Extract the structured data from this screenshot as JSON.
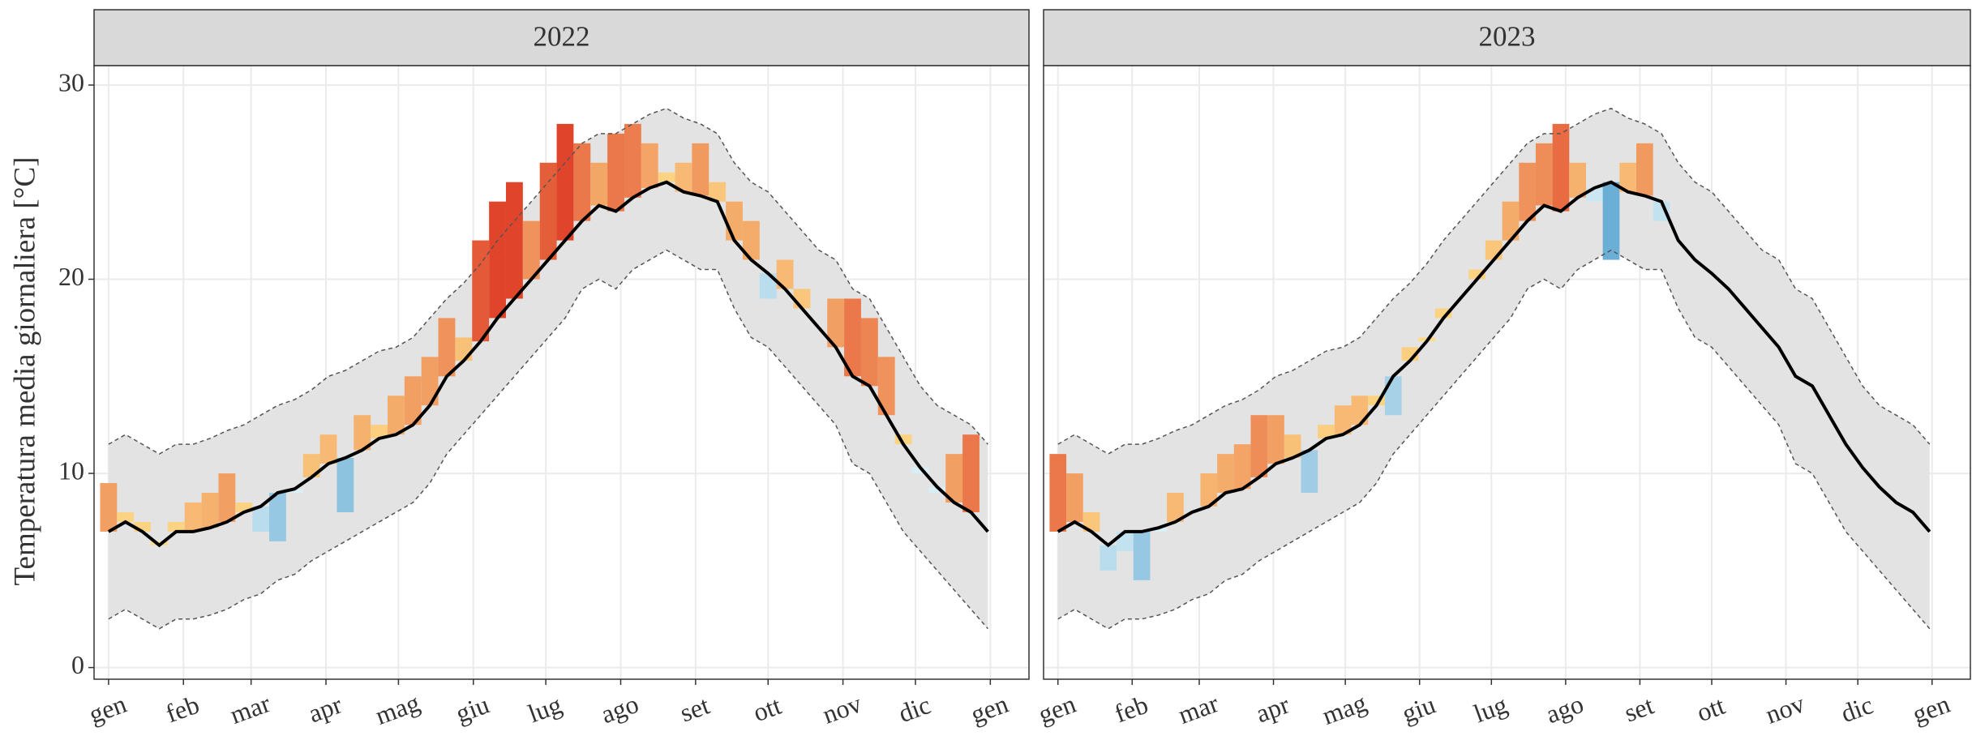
{
  "y_label": "Temperatura media giornaliera [°C]",
  "chart_data": [
    {
      "type": "climate-band",
      "title": "2022",
      "x": [
        0,
        7,
        14,
        21,
        28,
        35,
        42,
        49,
        56,
        63,
        70,
        77,
        84,
        91,
        98,
        105,
        112,
        119,
        126,
        133,
        140,
        147,
        154,
        161,
        168,
        175,
        182,
        189,
        196,
        203,
        210,
        217,
        224,
        231,
        238,
        245,
        252,
        259,
        266,
        273,
        280,
        287,
        294,
        301,
        308,
        315,
        322,
        329,
        336,
        343,
        350,
        357,
        364
      ],
      "xlim": [
        -6,
        381
      ],
      "xticks": [
        {
          "value": 0,
          "label": "gen"
        },
        {
          "value": 31,
          "label": "feb"
        },
        {
          "value": 59,
          "label": "mar"
        },
        {
          "value": 90,
          "label": "apr"
        },
        {
          "value": 120,
          "label": "mag"
        },
        {
          "value": 151,
          "label": "giu"
        },
        {
          "value": 181,
          "label": "lug"
        },
        {
          "value": 212,
          "label": "ago"
        },
        {
          "value": 243,
          "label": "set"
        },
        {
          "value": 273,
          "label": "ott"
        },
        {
          "value": 304,
          "label": "nov"
        },
        {
          "value": 334,
          "label": "dic"
        },
        {
          "value": 365,
          "label": "gen"
        }
      ],
      "ylim": [
        -0.6,
        31.0
      ],
      "yticks": [
        0,
        10,
        20,
        30
      ],
      "grid": true,
      "band_color": "#e3e3e3",
      "climate_mean": {
        "color": "#000000",
        "values": [
          7,
          7.5,
          7,
          6.3,
          7,
          7,
          7.2,
          7.5,
          8,
          8.3,
          9,
          9.2,
          9.8,
          10.5,
          10.8,
          11.2,
          11.8,
          12,
          12.5,
          13.5,
          15,
          15.8,
          16.8,
          18,
          19,
          20,
          21,
          22,
          23,
          23.8,
          23.5,
          24.2,
          24.7,
          25,
          24.5,
          24.3,
          24,
          22,
          21,
          20.3,
          19.5,
          18.5,
          17.5,
          16.5,
          15,
          14.5,
          13,
          11.5,
          10.3,
          9.3,
          8.5,
          8,
          7
        ]
      },
      "climate_upper": {
        "color": "#555555",
        "values": [
          11.5,
          12,
          11.5,
          11,
          11.5,
          11.5,
          11.8,
          12.2,
          12.5,
          13,
          13.5,
          13.8,
          14.3,
          15,
          15.3,
          15.8,
          16.3,
          16.5,
          17,
          18,
          19,
          19.8,
          20.8,
          22,
          23,
          24,
          25,
          26,
          27,
          27.5,
          27.5,
          28,
          28.5,
          28.8,
          28.3,
          28,
          27.5,
          26,
          25,
          24.5,
          23.5,
          22.5,
          21.5,
          21,
          19.5,
          19,
          17.5,
          16,
          14.5,
          13.5,
          13,
          12.5,
          11.5
        ]
      },
      "climate_lower": {
        "color": "#555555",
        "values": [
          2.5,
          3,
          2.5,
          2,
          2.5,
          2.5,
          2.7,
          3,
          3.5,
          3.8,
          4.5,
          4.8,
          5.5,
          6,
          6.5,
          7,
          7.5,
          8,
          8.5,
          9.5,
          11,
          12,
          13,
          14,
          15,
          16,
          17,
          18,
          19.5,
          20,
          19.5,
          20.5,
          21,
          21.5,
          21,
          20.5,
          20.5,
          18.5,
          17,
          16.5,
          15.5,
          14.5,
          13.5,
          12.5,
          10.5,
          10,
          8.5,
          7,
          6,
          5,
          4,
          3,
          2
        ]
      },
      "observed": {
        "warm_colors": [
          "#fee08b",
          "#e0442a"
        ],
        "cold_colors": [
          "#e0f3f8",
          "#6baed6"
        ],
        "values": [
          9.5,
          8,
          7.5,
          6.5,
          7.5,
          8.5,
          9,
          10,
          8.5,
          7,
          6.5,
          9,
          11,
          12,
          8,
          13,
          12.5,
          14,
          15,
          16,
          18,
          17,
          22,
          24,
          25,
          23,
          26,
          28,
          27,
          26,
          27.5,
          28,
          27,
          25.5,
          26,
          27,
          25,
          24,
          23,
          19,
          21,
          19.5,
          17.5,
          19,
          19,
          18,
          16,
          12,
          10,
          9,
          11,
          12,
          7
        ]
      }
    },
    {
      "type": "climate-band",
      "title": "2023",
      "x": [
        0,
        7,
        14,
        21,
        28,
        35,
        42,
        49,
        56,
        63,
        70,
        77,
        84,
        91,
        98,
        105,
        112,
        119,
        126,
        133,
        140,
        147,
        154,
        161,
        168,
        175,
        182,
        189,
        196,
        203,
        210,
        217,
        224,
        231,
        238,
        245,
        252,
        259,
        266,
        273,
        280,
        287,
        294,
        301,
        308,
        315,
        322,
        329,
        336,
        343,
        350,
        357,
        364
      ],
      "xlim": [
        -6,
        381
      ],
      "xticks": [
        {
          "value": 0,
          "label": "gen"
        },
        {
          "value": 31,
          "label": "feb"
        },
        {
          "value": 59,
          "label": "mar"
        },
        {
          "value": 90,
          "label": "apr"
        },
        {
          "value": 120,
          "label": "mag"
        },
        {
          "value": 151,
          "label": "giu"
        },
        {
          "value": 181,
          "label": "lug"
        },
        {
          "value": 212,
          "label": "ago"
        },
        {
          "value": 243,
          "label": "set"
        },
        {
          "value": 273,
          "label": "ott"
        },
        {
          "value": 304,
          "label": "nov"
        },
        {
          "value": 334,
          "label": "dic"
        },
        {
          "value": 365,
          "label": "gen"
        }
      ],
      "ylim": [
        -0.6,
        31.0
      ],
      "yticks": [
        0,
        10,
        20,
        30
      ],
      "grid": true,
      "band_color": "#e3e3e3",
      "climate_mean": {
        "color": "#000000",
        "values": [
          7,
          7.5,
          7,
          6.3,
          7,
          7,
          7.2,
          7.5,
          8,
          8.3,
          9,
          9.2,
          9.8,
          10.5,
          10.8,
          11.2,
          11.8,
          12,
          12.5,
          13.5,
          15,
          15.8,
          16.8,
          18,
          19,
          20,
          21,
          22,
          23,
          23.8,
          23.5,
          24.2,
          24.7,
          25,
          24.5,
          24.3,
          24,
          22,
          21,
          20.3,
          19.5,
          18.5,
          17.5,
          16.5,
          15,
          14.5,
          13,
          11.5,
          10.3,
          9.3,
          8.5,
          8,
          7
        ]
      },
      "climate_upper": {
        "color": "#555555",
        "values": [
          11.5,
          12,
          11.5,
          11,
          11.5,
          11.5,
          11.8,
          12.2,
          12.5,
          13,
          13.5,
          13.8,
          14.3,
          15,
          15.3,
          15.8,
          16.3,
          16.5,
          17,
          18,
          19,
          19.8,
          20.8,
          22,
          23,
          24,
          25,
          26,
          27,
          27.5,
          27.5,
          28,
          28.5,
          28.8,
          28.3,
          28,
          27.5,
          26,
          25,
          24.5,
          23.5,
          22.5,
          21.5,
          21,
          19.5,
          19,
          17.5,
          16,
          14.5,
          13.5,
          13,
          12.5,
          11.5
        ]
      },
      "climate_lower": {
        "color": "#555555",
        "values": [
          2.5,
          3,
          2.5,
          2,
          2.5,
          2.5,
          2.7,
          3,
          3.5,
          3.8,
          4.5,
          4.8,
          5.5,
          6,
          6.5,
          7,
          7.5,
          8,
          8.5,
          9.5,
          11,
          12,
          13,
          14,
          15,
          16,
          17,
          18,
          19.5,
          20,
          19.5,
          20.5,
          21,
          21.5,
          21,
          20.5,
          20.5,
          18.5,
          17,
          16.5,
          15.5,
          14.5,
          13.5,
          12.5,
          10.5,
          10,
          8.5,
          7,
          6,
          5,
          4,
          3,
          2
        ]
      },
      "observed": {
        "warm_colors": [
          "#fee08b",
          "#e0442a"
        ],
        "cold_colors": [
          "#e0f3f8",
          "#6baed6"
        ],
        "values": [
          11,
          10,
          8,
          5,
          6,
          4.5,
          7,
          9,
          8,
          10,
          11,
          11.5,
          13,
          13,
          12,
          9,
          12.5,
          13.5,
          14,
          14,
          13,
          16.5,
          17,
          18.5,
          19,
          20.5,
          22,
          24,
          26,
          27,
          28,
          26,
          24,
          21,
          26,
          27,
          23,
          null,
          null,
          null,
          null,
          null,
          null,
          null,
          null,
          null,
          null,
          null,
          null,
          null,
          null,
          null,
          null
        ]
      }
    }
  ]
}
